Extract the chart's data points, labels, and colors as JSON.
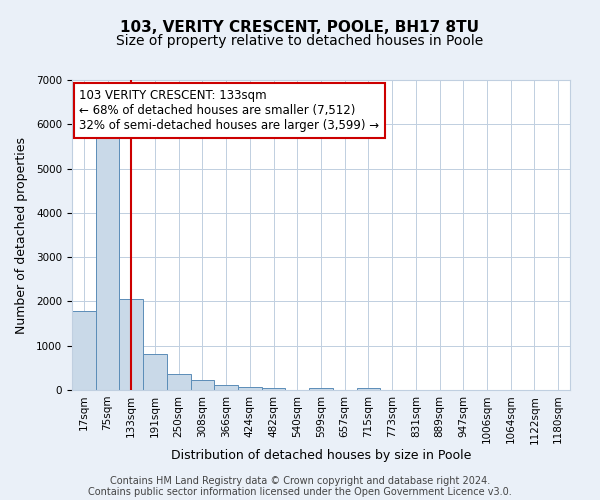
{
  "title": "103, VERITY CRESCENT, POOLE, BH17 8TU",
  "subtitle": "Size of property relative to detached houses in Poole",
  "xlabel": "Distribution of detached houses by size in Poole",
  "ylabel": "Number of detached properties",
  "bar_color": "#c9d9e8",
  "bar_edgecolor": "#5b8db8",
  "background_color": "#eaf0f8",
  "plot_bg_color": "#ffffff",
  "grid_color": "#c0cfe0",
  "bin_labels": [
    "17sqm",
    "75sqm",
    "133sqm",
    "191sqm",
    "250sqm",
    "308sqm",
    "366sqm",
    "424sqm",
    "482sqm",
    "540sqm",
    "599sqm",
    "657sqm",
    "715sqm",
    "773sqm",
    "831sqm",
    "889sqm",
    "947sqm",
    "1006sqm",
    "1064sqm",
    "1122sqm",
    "1180sqm"
  ],
  "bar_values": [
    1780,
    5740,
    2060,
    820,
    370,
    220,
    110,
    60,
    40,
    0,
    50,
    0,
    40,
    0,
    0,
    0,
    0,
    0,
    0,
    0,
    0
  ],
  "ylim": [
    0,
    7000
  ],
  "yticks": [
    0,
    1000,
    2000,
    3000,
    4000,
    5000,
    6000,
    7000
  ],
  "red_line_x": 2,
  "annotation_title": "103 VERITY CRESCENT: 133sqm",
  "annotation_line1": "← 68% of detached houses are smaller (7,512)",
  "annotation_line2": "32% of semi-detached houses are larger (3,599) →",
  "footer1": "Contains HM Land Registry data © Crown copyright and database right 2024.",
  "footer2": "Contains public sector information licensed under the Open Government Licence v3.0.",
  "annotation_box_color": "#ffffff",
  "annotation_box_edgecolor": "#cc0000",
  "red_line_color": "#cc0000",
  "title_fontsize": 11,
  "subtitle_fontsize": 10,
  "axis_label_fontsize": 9,
  "tick_fontsize": 7.5,
  "annotation_fontsize": 8.5,
  "footer_fontsize": 7
}
